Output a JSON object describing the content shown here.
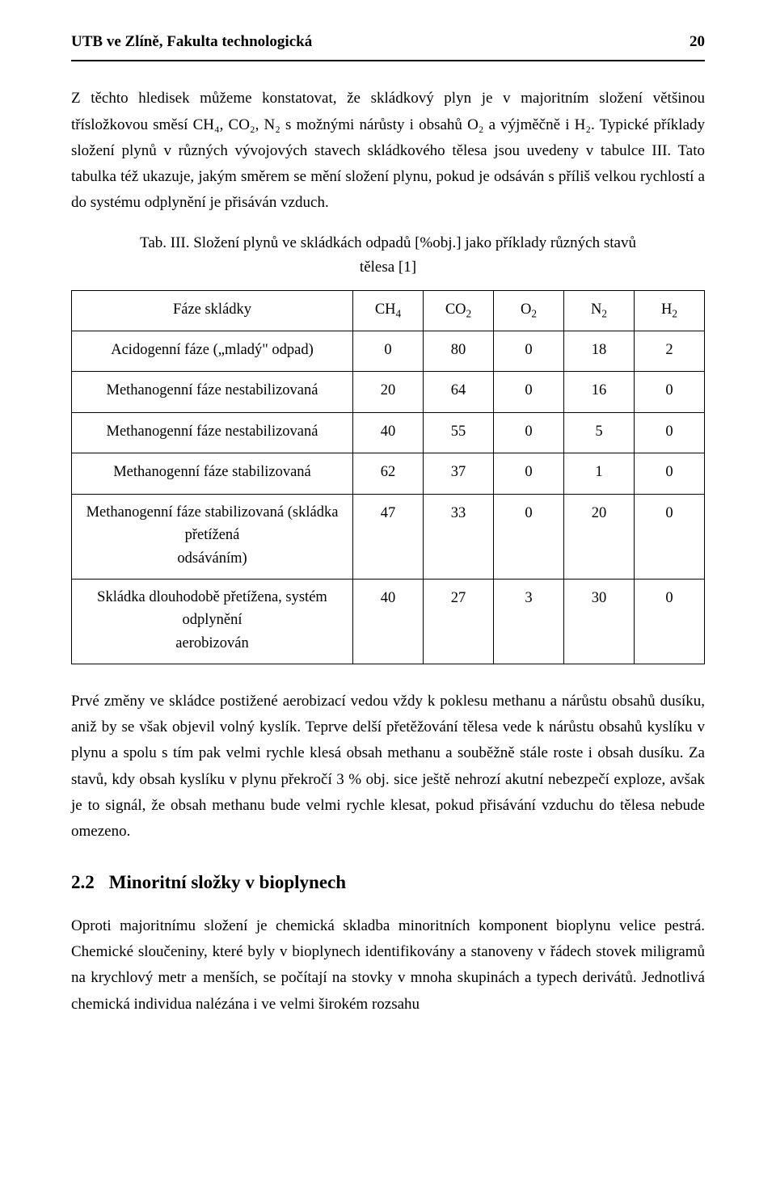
{
  "header": {
    "left": "UTB ve Zlíně, Fakulta technologická",
    "page_number": "20"
  },
  "paragraphs": {
    "p1": "Z těchto hledisek můžeme konstatovat, že skládkový plyn je v majoritním složení většinou třísložkovou směsí CH₄, CO₂, N₂ s možnými nárůsty i obsahů O₂ a výjměčně i H₂. Typické příklady složení plynů v různých vývojových stavech skládkového tělesa jsou uvedeny v tabulce III. Tato tabulka též ukazuje, jakým směrem se mění složení plynu, pokud je odsáván s příliš velkou rychlostí a do systému odplynění je přisáván vzduch.",
    "caption1": "Tab. III. Složení plynů ve skládkách odpadů [%obj.] jako příklady různých stavů",
    "caption2": "tělesa [1]",
    "p2": "Prvé změny ve skládce postižené aerobizací vedou vždy k poklesu methanu a nárůstu obsahů dusíku, aniž by se však objevil volný kyslík. Teprve delší přetěžování tělesa vede k nárůstu obsahů kyslíku v plynu a spolu s tím pak velmi rychle klesá obsah methanu a souběžně stále roste i obsah dusíku. Za stavů, kdy obsah kyslíku v plynu překročí 3 % obj. sice ještě nehrozí akutní nebezpečí exploze, avšak je to signál, že obsah methanu bude velmi rychle klesat, pokud přisávání vzduchu do tělesa nebude omezeno.",
    "p3": "Oproti majoritnímu složení je chemická skladba minoritních komponent bioplynu velice pestrá. Chemické sloučeniny, které byly v bioplynech identifikovány a stanoveny v řádech stovek miligramů na krychlový metr a menších, se počítají na stovky v mnoha skupinách a typech derivátů. Jednotlivá chemická individua nalézána i ve velmi širokém rozsahu"
  },
  "section": {
    "num": "2.2",
    "title": "Minoritní složky v bioplynech"
  },
  "table": {
    "head_phase": "Fáze skládky",
    "head_ch4": "CH",
    "head_co2": "CO",
    "head_o2": "O",
    "head_n2": "N",
    "head_h2": "H",
    "sub4": "4",
    "sub2": "2",
    "rows": [
      {
        "phase": "Acidogenní fáze („mladý\" odpad)",
        "ch4": "0",
        "co2": "80",
        "o2": "0",
        "n2": "18",
        "h2": "2"
      },
      {
        "phase": "Methanogenní fáze nestabilizovaná",
        "ch4": "20",
        "co2": "64",
        "o2": "0",
        "n2": "16",
        "h2": "0"
      },
      {
        "phase": "Methanogenní fáze nestabilizovaná",
        "ch4": "40",
        "co2": "55",
        "o2": "0",
        "n2": "5",
        "h2": "0"
      },
      {
        "phase": "Methanogenní fáze stabilizovaná",
        "ch4": "62",
        "co2": "37",
        "o2": "0",
        "n2": "1",
        "h2": "0"
      },
      {
        "phase_l1": "Methanogenní fáze stabilizovaná (skládka přetížená",
        "phase_l2": "odsáváním)",
        "ch4": "47",
        "co2": "33",
        "o2": "0",
        "n2": "20",
        "h2": "0"
      },
      {
        "phase_l1": "Skládka dlouhodobě přetížena, systém odplynění",
        "phase_l2": "aerobizován",
        "ch4": "40",
        "co2": "27",
        "o2": "3",
        "n2": "30",
        "h2": "0"
      }
    ]
  }
}
